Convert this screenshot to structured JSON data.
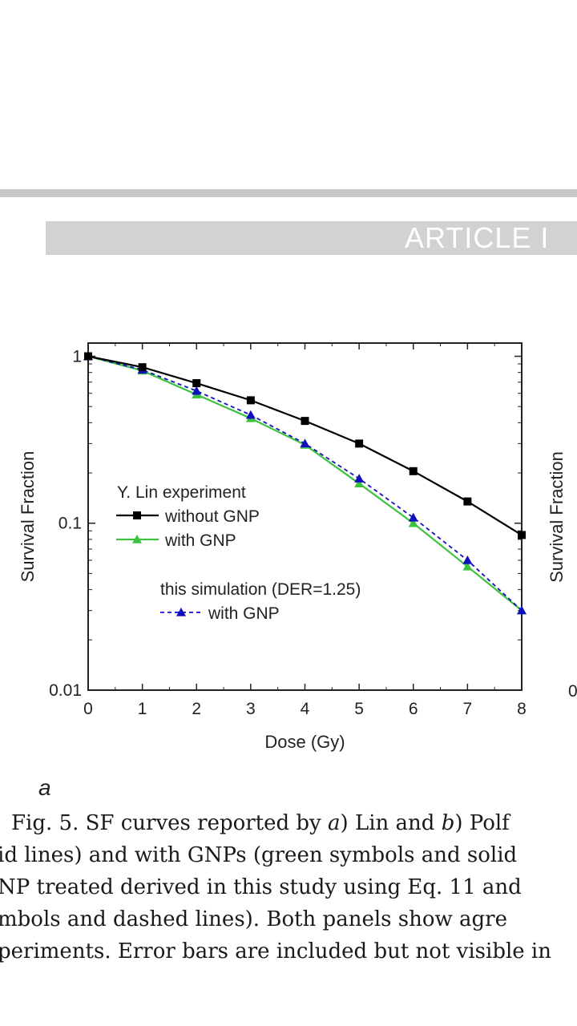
{
  "header": {
    "banner": "ARTICLE I"
  },
  "panel_label": "a",
  "caption": {
    "line1_a": "Fig. 5. SF curves reported by ",
    "line1_i1": "a",
    "line1_b": ") Lin and ",
    "line1_i2": "b",
    "line1_c": ") Polf",
    "line2": "id lines) and with GNPs (green symbols and solid",
    "line3": "NP treated derived in this study using Eq. 11 and",
    "line4": "mbols and dashed lines). Both panels show agre",
    "line5": "periments. Error bars are included but not visible in"
  },
  "chart_data": [
    {
      "type": "line",
      "xlabel": "Dose (Gy)",
      "ylabel": "Survival Fraction",
      "yscale": "log",
      "xlim": [
        0,
        8
      ],
      "ylim": [
        0.01,
        1.2
      ],
      "x_ticks": [
        0,
        1,
        2,
        3,
        4,
        5,
        6,
        7,
        8
      ],
      "y_ticks": [
        {
          "value": 1,
          "label": "1"
        },
        {
          "value": 0.1,
          "label": "0.1"
        },
        {
          "value": 0.01,
          "label": "0.01"
        }
      ],
      "x": [
        0,
        1,
        2,
        3,
        4,
        5,
        6,
        7,
        8
      ],
      "legend": {
        "group1_title": "Y. Lin experiment",
        "group2_title": "this simulation (DER=1.25)",
        "placement": "center-left"
      },
      "series": [
        {
          "name": "without GNP",
          "values": [
            1.0,
            0.86,
            0.69,
            0.545,
            0.41,
            0.3,
            0.205,
            0.135,
            0.085
          ],
          "color": "#000000",
          "marker": "square",
          "line": "solid"
        },
        {
          "name": "with GNP",
          "values": [
            1.0,
            0.82,
            0.59,
            0.425,
            0.295,
            0.173,
            0.1,
            0.055,
            0.03
          ],
          "color": "#3ec23e",
          "marker": "triangle",
          "line": "solid"
        },
        {
          "name": "with GNP",
          "values": [
            1.0,
            0.83,
            0.62,
            0.445,
            0.3,
            0.185,
            0.108,
            0.06,
            0.03
          ],
          "color": "#1010c0",
          "marker": "triangle",
          "line": "dashed"
        }
      ]
    },
    {
      "type": "line",
      "ylabel": "Survival Fraction",
      "y_ticks": [
        {
          "value": 0.01,
          "label": "0"
        }
      ]
    }
  ]
}
